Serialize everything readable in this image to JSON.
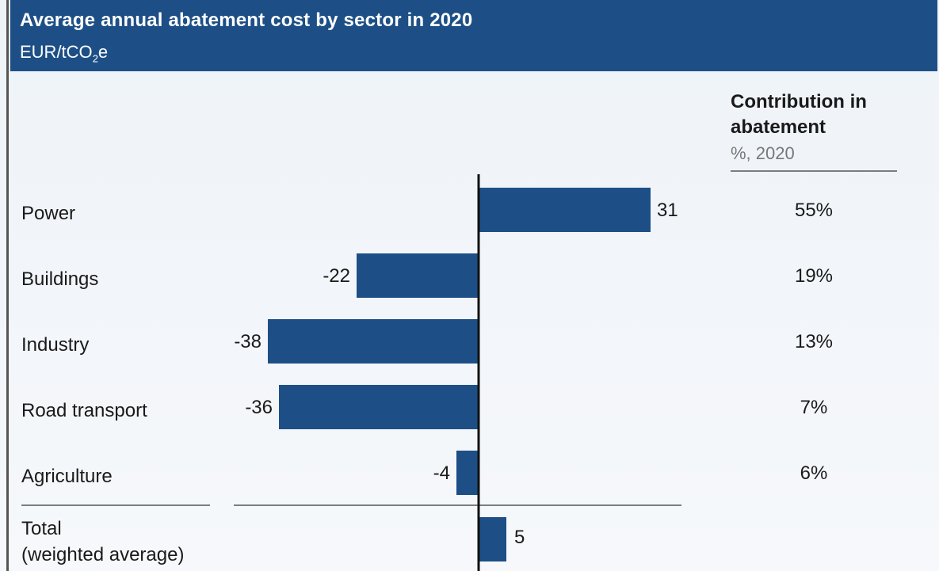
{
  "header": {
    "title": "Average annual abatement cost by sector in 2020",
    "unit_prefix": "EUR/tCO",
    "unit_subscript": "2",
    "unit_suffix": "e"
  },
  "contribution": {
    "heading_line1": "Contribution in",
    "heading_line2": "abatement",
    "subheading": "%, 2020"
  },
  "chart_data": {
    "type": "bar",
    "orientation": "horizontal",
    "title": "Average annual abatement cost by sector in 2020",
    "unit": "EUR/tCO2e",
    "categories": [
      "Power",
      "Buildings",
      "Industry",
      "Road transport",
      "Agriculture"
    ],
    "values": [
      31,
      -22,
      -38,
      -36,
      -4
    ],
    "value_labels": [
      "31",
      "-22",
      "-38",
      "-36",
      "-4"
    ],
    "contribution_pct": [
      "55%",
      "19%",
      "13%",
      "7%",
      "6%"
    ],
    "total": {
      "label_line1": "Total",
      "label_line2": "(weighted average)",
      "value": 5,
      "value_label": "5"
    },
    "bar_color": "#1d4f86"
  }
}
